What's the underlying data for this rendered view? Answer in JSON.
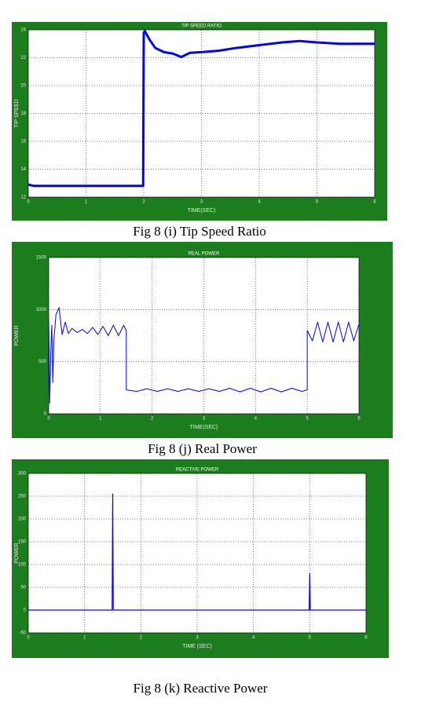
{
  "chart_data": [
    {
      "type": "line",
      "title": "TIP SPEED RATIO",
      "x_label": "TIME(SEC)",
      "y_label": "TIP SPEED",
      "caption": "Fig 8 (i) Tip Speed Ratio",
      "xlim": [
        0,
        6
      ],
      "xticks": [
        0,
        1,
        2,
        3,
        4,
        5,
        6
      ],
      "ylim": [
        12,
        24
      ],
      "yticks": [
        12,
        14,
        16,
        18,
        20,
        22,
        24
      ],
      "grid": true,
      "series": [
        {
          "color": "#0000ff",
          "x": [
            0,
            0.1,
            0.5,
            1,
            1.5,
            1.99,
            2.0,
            2.02,
            2.1,
            2.2,
            2.35,
            2.5,
            2.65,
            2.8,
            3.0,
            3.3,
            3.6,
            4.0,
            4.4,
            4.7,
            5.0,
            5.4,
            5.7,
            6.0
          ],
          "values": [
            12.9,
            12.8,
            12.8,
            12.8,
            12.8,
            12.8,
            23.8,
            23.9,
            23.3,
            22.7,
            22.4,
            22.3,
            22.05,
            22.35,
            22.4,
            22.5,
            22.7,
            22.9,
            23.1,
            23.2,
            23.1,
            23.0,
            23.0,
            23.0
          ]
        }
      ]
    },
    {
      "type": "line",
      "title": "REAL POWER",
      "x_label": "TIME(SEC)",
      "y_label": "POWER",
      "caption": "Fig 8 (j) Real Power",
      "xlim": [
        0,
        6
      ],
      "xticks": [
        0,
        1,
        2,
        3,
        4,
        5,
        6
      ],
      "ylim": [
        0,
        1500
      ],
      "yticks": [
        0,
        500,
        1000,
        1500
      ],
      "grid": true,
      "series": [
        {
          "color": "#0000ff",
          "x": [
            0,
            0.02,
            0.04,
            0.06,
            0.08,
            0.1,
            0.14,
            0.2,
            0.26,
            0.32,
            0.38,
            0.45,
            0.55,
            0.65,
            0.75,
            0.85,
            0.95,
            1.05,
            1.15,
            1.25,
            1.35,
            1.45,
            1.5,
            1.5,
            1.7,
            1.9,
            2.1,
            2.3,
            2.5,
            2.7,
            2.9,
            3.1,
            3.3,
            3.5,
            3.7,
            3.9,
            4.1,
            4.3,
            4.5,
            4.7,
            4.9,
            5.0,
            5.0,
            5.1,
            5.2,
            5.3,
            5.4,
            5.5,
            5.6,
            5.7,
            5.8,
            5.9,
            6.0
          ],
          "values": [
            900,
            100,
            600,
            850,
            300,
            700,
            950,
            1020,
            760,
            880,
            770,
            820,
            780,
            810,
            770,
            830,
            760,
            840,
            750,
            850,
            750,
            850,
            800,
            230,
            215,
            240,
            215,
            240,
            215,
            240,
            215,
            240,
            215,
            245,
            210,
            245,
            210,
            245,
            210,
            245,
            215,
            230,
            800,
            700,
            880,
            690,
            880,
            690,
            880,
            690,
            880,
            700,
            860
          ]
        }
      ]
    },
    {
      "type": "line",
      "title": "REACTIVE POWER",
      "x_label": "TIME (SEC)",
      "y_label": "POWER",
      "caption": "Fig 8 (k) Reactive Power",
      "xlim": [
        0,
        6
      ],
      "xticks": [
        0,
        1,
        2,
        3,
        4,
        5,
        6
      ],
      "ylim": [
        -50,
        300
      ],
      "yticks": [
        -50,
        0,
        50,
        100,
        150,
        200,
        250,
        300
      ],
      "grid": true,
      "series": [
        {
          "color": "#0000ff",
          "x": [
            0,
            1.49,
            1.5,
            1.51,
            4.99,
            5.0,
            5.01,
            6
          ],
          "values": [
            0,
            0,
            255,
            0,
            0,
            80,
            0,
            0
          ]
        }
      ]
    }
  ]
}
